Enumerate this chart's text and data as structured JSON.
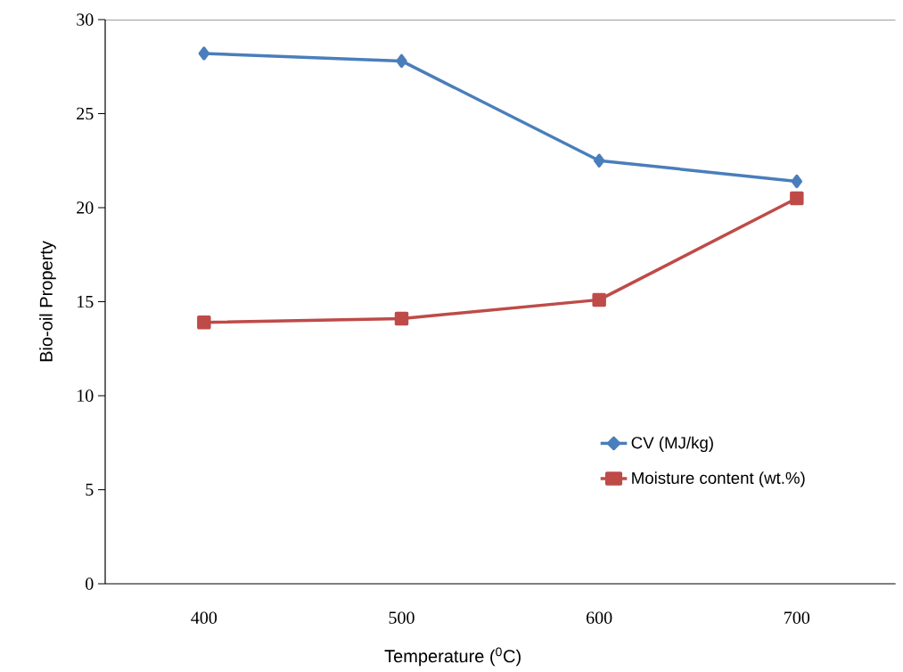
{
  "chart_data": {
    "type": "line",
    "xlabel": "Temperature ($^{0}$C)",
    "ylabel": "Bio-oil Property",
    "categories": [
      "400",
      "500",
      "600",
      "700"
    ],
    "series": [
      {
        "name": "CV (MJ/kg)",
        "color": "#4a7ebb",
        "marker": "diamond",
        "values": [
          28.2,
          27.8,
          22.5,
          21.4
        ]
      },
      {
        "name": "Moisture content (wt.%)",
        "color": "#be4b48",
        "marker": "square",
        "values": [
          13.9,
          14.1,
          15.1,
          20.5
        ]
      }
    ],
    "ylim": [
      0,
      30
    ],
    "yticks": [
      0,
      5,
      10,
      15,
      20,
      25,
      30
    ],
    "grid": false,
    "legend": "bottom right",
    "line_style": "solid"
  }
}
